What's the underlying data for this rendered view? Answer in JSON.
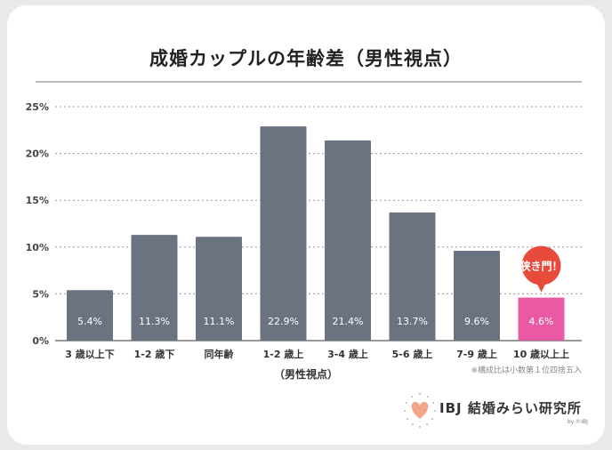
{
  "title": "成婚カップルの年齢差（男性視点）",
  "note": "※構成比は小数第１位四捨五入",
  "logo": {
    "text": "IBJ 結婚みらい研究所",
    "sub": "by ©IBJ"
  },
  "colors": {
    "bar": "#6b7380",
    "highlight": "#ea5aa4",
    "grid": "#9a9a9a"
  },
  "chart_data": {
    "type": "bar",
    "title": "成婚カップルの年齢差（男性視点）",
    "xlabel": "（男性視点）",
    "ylabel": "",
    "categories": [
      "3 歳以上下",
      "1-2 歳下",
      "同年齢",
      "1-2 歳上",
      "3-4 歳上",
      "5-6 歳上",
      "7-9 歳上",
      "10 歳以上上"
    ],
    "values": [
      5.4,
      11.3,
      11.1,
      22.9,
      21.4,
      13.7,
      9.6,
      4.6
    ],
    "value_labels": [
      "5.4%",
      "11.3%",
      "11.1%",
      "22.9%",
      "21.4%",
      "13.7%",
      "9.6%",
      "4.6%"
    ],
    "yticks": [
      "0%",
      "5%",
      "10%",
      "15%",
      "20%",
      "25%"
    ],
    "ylim": [
      0,
      25
    ],
    "grid": true,
    "highlight_index": 7,
    "annotation": "狭き門！"
  }
}
